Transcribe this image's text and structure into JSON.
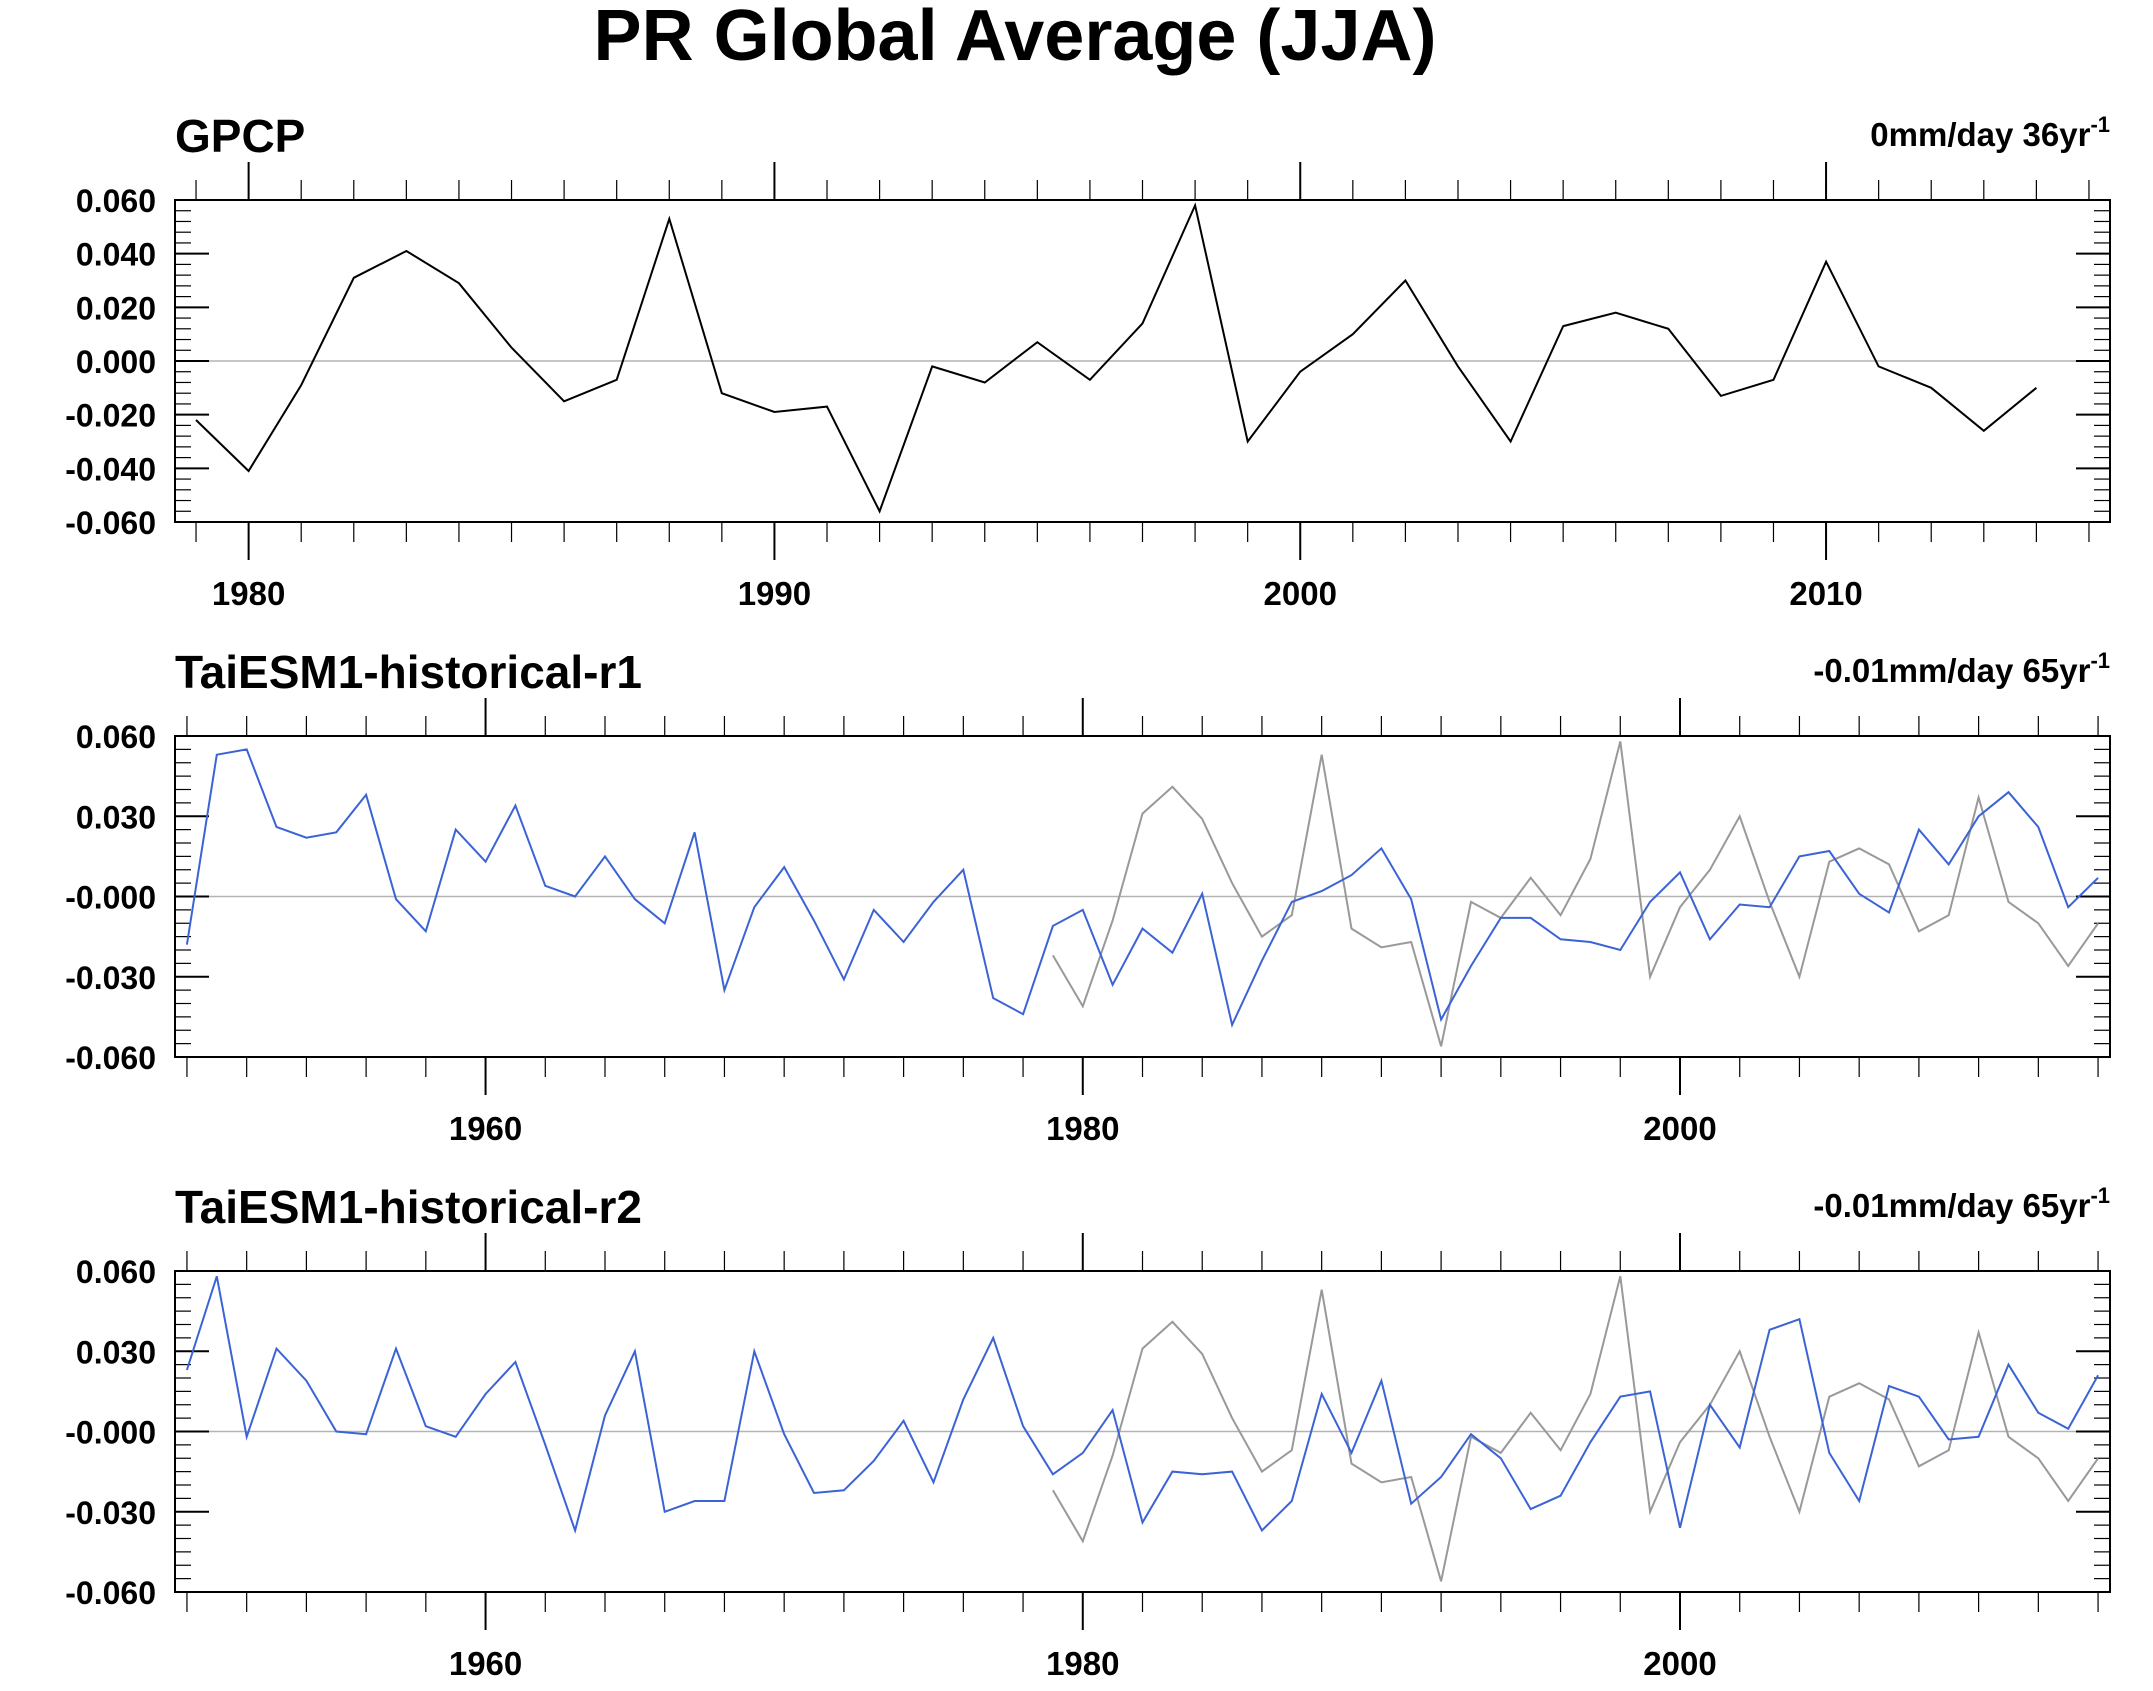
{
  "figure": {
    "title": "PR Global Average (JJA)"
  },
  "chart_data": [
    {
      "type": "line",
      "title": "GPCP",
      "trend_label": "0mm/day 36yr",
      "trend_superscript": "-1",
      "xlim": [
        1978.6,
        2015.4
      ],
      "ylim": [
        -0.06,
        0.06
      ],
      "yticks": [
        0.06,
        0.04,
        0.02,
        0.0,
        -0.02,
        -0.04,
        -0.06
      ],
      "ytick_labels": [
        "0.060",
        "0.040",
        "0.020",
        "0.000",
        "-0.020",
        "-0.040",
        "-0.060"
      ],
      "xticks": [
        1980,
        1990,
        2000,
        2010
      ],
      "xtick_labels": [
        "1980",
        "1990",
        "2000",
        "2010"
      ],
      "zero_line": true,
      "series": [
        {
          "role": "model",
          "color": "#000000",
          "x_start": 1979,
          "values": [
            -0.022,
            -0.041,
            -0.009,
            0.031,
            0.041,
            0.029,
            0.005,
            -0.015,
            -0.007,
            0.053,
            -0.012,
            -0.019,
            -0.017,
            -0.056,
            -0.002,
            -0.008,
            0.007,
            -0.007,
            0.014,
            0.058,
            -0.03,
            -0.004,
            0.01,
            0.03,
            -0.002,
            -0.03,
            0.013,
            0.018,
            0.012,
            -0.013,
            -0.007,
            0.037,
            -0.002,
            -0.01,
            -0.026,
            -0.01
          ]
        }
      ]
    },
    {
      "type": "line",
      "title": "TaiESM1-historical-r1",
      "trend_label": "-0.01mm/day 65yr",
      "trend_superscript": "-1",
      "xlim": [
        1949.6,
        2014.4
      ],
      "ylim": [
        -0.06,
        0.06
      ],
      "yticks": [
        0.06,
        0.03,
        0.0,
        -0.03,
        -0.06
      ],
      "ytick_labels": [
        "0.060",
        "0.030",
        "-0.000",
        "-0.030",
        "-0.060"
      ],
      "xticks": [
        1960,
        1980,
        2000
      ],
      "xtick_labels": [
        "1960",
        "1980",
        "2000"
      ],
      "zero_line": true,
      "series": [
        {
          "role": "observed",
          "color": "#999999",
          "x_start": 1979,
          "values": [
            -0.022,
            -0.041,
            -0.009,
            0.031,
            0.041,
            0.029,
            0.005,
            -0.015,
            -0.007,
            0.053,
            -0.012,
            -0.019,
            -0.017,
            -0.056,
            -0.002,
            -0.008,
            0.007,
            -0.007,
            0.014,
            0.058,
            -0.03,
            -0.004,
            0.01,
            0.03,
            -0.002,
            -0.03,
            0.013,
            0.018,
            0.012,
            -0.013,
            -0.007,
            0.037,
            -0.002,
            -0.01,
            -0.026,
            -0.01
          ]
        },
        {
          "role": "model",
          "color": "#3b63d6",
          "x_start": 1950,
          "values": [
            -0.018,
            0.053,
            0.055,
            0.026,
            0.022,
            0.024,
            0.038,
            -0.001,
            -0.013,
            0.025,
            0.013,
            0.034,
            0.004,
            0.0,
            0.015,
            -0.001,
            -0.01,
            0.024,
            -0.035,
            -0.004,
            0.011,
            -0.009,
            -0.031,
            -0.005,
            -0.017,
            -0.002,
            0.01,
            -0.038,
            -0.044,
            -0.011,
            -0.005,
            -0.033,
            -0.012,
            -0.021,
            0.001,
            -0.048,
            -0.024,
            -0.002,
            0.002,
            0.008,
            0.018,
            -0.001,
            -0.046,
            -0.026,
            -0.008,
            -0.008,
            -0.016,
            -0.017,
            -0.02,
            -0.002,
            0.009,
            -0.016,
            -0.003,
            -0.004,
            0.015,
            0.017,
            0.001,
            -0.006,
            0.025,
            0.012,
            0.03,
            0.039,
            0.026,
            -0.004,
            0.007
          ]
        }
      ]
    },
    {
      "type": "line",
      "title": "TaiESM1-historical-r2",
      "trend_label": "-0.01mm/day 65yr",
      "trend_superscript": "-1",
      "xlim": [
        1949.6,
        2014.4
      ],
      "ylim": [
        -0.06,
        0.06
      ],
      "yticks": [
        0.06,
        0.03,
        0.0,
        -0.03,
        -0.06
      ],
      "ytick_labels": [
        "0.060",
        "0.030",
        "-0.000",
        "-0.030",
        "-0.060"
      ],
      "xticks": [
        1960,
        1980,
        2000
      ],
      "xtick_labels": [
        "1960",
        "1980",
        "2000"
      ],
      "zero_line": true,
      "series": [
        {
          "role": "observed",
          "color": "#999999",
          "x_start": 1979,
          "values": [
            -0.022,
            -0.041,
            -0.009,
            0.031,
            0.041,
            0.029,
            0.005,
            -0.015,
            -0.007,
            0.053,
            -0.012,
            -0.019,
            -0.017,
            -0.056,
            -0.002,
            -0.008,
            0.007,
            -0.007,
            0.014,
            0.058,
            -0.03,
            -0.004,
            0.01,
            0.03,
            -0.002,
            -0.03,
            0.013,
            0.018,
            0.012,
            -0.013,
            -0.007,
            0.037,
            -0.002,
            -0.01,
            -0.026,
            -0.01
          ]
        },
        {
          "role": "model",
          "color": "#3b63d6",
          "x_start": 1950,
          "values": [
            0.023,
            0.058,
            -0.002,
            0.031,
            0.019,
            -0.0,
            -0.001,
            0.031,
            0.002,
            -0.002,
            0.014,
            0.026,
            -0.005,
            -0.037,
            0.006,
            0.03,
            -0.03,
            -0.026,
            -0.026,
            0.03,
            -0.001,
            -0.023,
            -0.022,
            -0.011,
            0.004,
            -0.019,
            0.012,
            0.035,
            0.002,
            -0.016,
            -0.008,
            0.008,
            -0.034,
            -0.015,
            -0.016,
            -0.015,
            -0.037,
            -0.026,
            0.014,
            -0.008,
            0.019,
            -0.027,
            -0.017,
            -0.001,
            -0.01,
            -0.029,
            -0.024,
            -0.004,
            0.013,
            0.015,
            -0.036,
            0.01,
            -0.006,
            0.038,
            0.042,
            -0.008,
            -0.026,
            0.017,
            0.013,
            -0.003,
            -0.002,
            0.025,
            0.007,
            0.001,
            0.021
          ]
        }
      ]
    }
  ]
}
